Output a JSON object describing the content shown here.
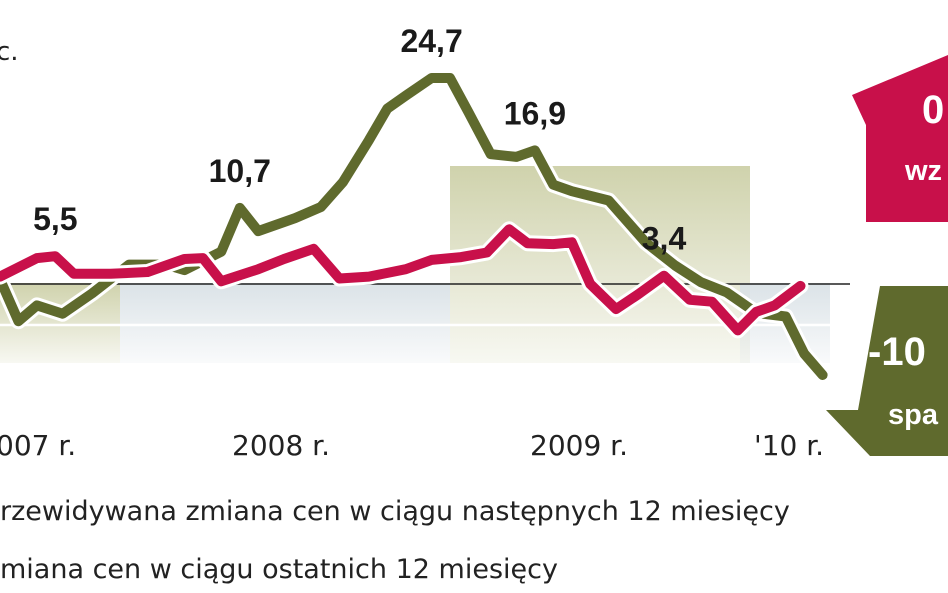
{
  "chart_data": {
    "type": "line",
    "x_labels": [
      "007 r.",
      "2008 r.",
      "2009 r.",
      "'10 r."
    ],
    "top_left_text": "c.",
    "series": [
      {
        "name": "rzewidywana zmiana cen w ciągu następnych 12 miesięcy",
        "color": "#5f6a2d",
        "points": [
          [
            2006.95,
            3.0
          ],
          [
            2007.0,
            -1.5
          ],
          [
            2007.05,
            0.2
          ],
          [
            2007.12,
            -0.7
          ],
          [
            2007.2,
            1.5
          ],
          [
            2007.3,
            4.6
          ],
          [
            2007.4,
            4.6
          ],
          [
            2007.45,
            4.0
          ],
          [
            2007.55,
            6.0
          ],
          [
            2007.6,
            10.7
          ],
          [
            2007.65,
            8.2
          ],
          [
            2007.75,
            9.6
          ],
          [
            2007.82,
            10.8
          ],
          [
            2007.88,
            13.5
          ],
          [
            2007.95,
            18.0
          ],
          [
            2008.0,
            21.4
          ],
          [
            2008.05,
            22.8
          ],
          [
            2008.12,
            24.7
          ],
          [
            2008.17,
            24.7
          ],
          [
            2008.22,
            21.0
          ],
          [
            2008.28,
            16.5
          ],
          [
            2008.35,
            16.2
          ],
          [
            2008.4,
            16.9
          ],
          [
            2008.45,
            13.2
          ],
          [
            2008.5,
            12.5
          ],
          [
            2008.6,
            11.5
          ],
          [
            2008.7,
            7.0
          ],
          [
            2008.78,
            4.5
          ],
          [
            2008.85,
            2.7
          ],
          [
            2008.92,
            1.6
          ],
          [
            2009.0,
            -0.6
          ],
          [
            2009.08,
            -1.0
          ],
          [
            2009.13,
            -5.0
          ],
          [
            2009.18,
            -7.3
          ]
        ]
      },
      {
        "name": "miana cen w ciągu ostatnich 12 miesięcy",
        "color": "#c8104a",
        "points": [
          [
            2006.95,
            3.3
          ],
          [
            2007.05,
            5.3
          ],
          [
            2007.1,
            5.5
          ],
          [
            2007.15,
            3.6
          ],
          [
            2007.25,
            3.6
          ],
          [
            2007.35,
            3.8
          ],
          [
            2007.45,
            5.2
          ],
          [
            2007.5,
            5.3
          ],
          [
            2007.55,
            2.8
          ],
          [
            2007.65,
            4.1
          ],
          [
            2007.72,
            5.2
          ],
          [
            2007.8,
            6.3
          ],
          [
            2007.87,
            3.1
          ],
          [
            2007.95,
            3.3
          ],
          [
            2008.05,
            4.1
          ],
          [
            2008.12,
            5.1
          ],
          [
            2008.2,
            5.4
          ],
          [
            2008.27,
            5.9
          ],
          [
            2008.33,
            8.4
          ],
          [
            2008.38,
            6.9
          ],
          [
            2008.45,
            6.8
          ],
          [
            2008.5,
            7.0
          ],
          [
            2008.55,
            2.5
          ],
          [
            2008.62,
            -0.2
          ],
          [
            2008.68,
            1.4
          ],
          [
            2008.75,
            3.4
          ],
          [
            2008.82,
            0.8
          ],
          [
            2008.88,
            0.6
          ],
          [
            2008.95,
            -2.5
          ],
          [
            2009.0,
            -0.5
          ],
          [
            2009.05,
            0.2
          ],
          [
            2009.12,
            2.3
          ]
        ]
      }
    ],
    "data_labels": [
      {
        "text": "5,5",
        "x": 2007.1,
        "y": 5.5,
        "series": 1
      },
      {
        "text": "10,7",
        "x": 2007.6,
        "y": 10.7,
        "series": 0
      },
      {
        "text": "24,7",
        "x": 2008.12,
        "y": 24.7,
        "series": 0
      },
      {
        "text": "16,9",
        "x": 2008.4,
        "y": 16.9,
        "series": 0
      },
      {
        "text": "3,4",
        "x": 2008.75,
        "y": 3.4,
        "series": 1
      }
    ],
    "reference_lines": [
      0,
      -2.3
    ],
    "callouts": [
      {
        "value": "0",
        "word": "wz",
        "color": "#c8104a"
      },
      {
        "value": "-10",
        "word": "spa",
        "color": "#5f6a2d"
      }
    ]
  }
}
